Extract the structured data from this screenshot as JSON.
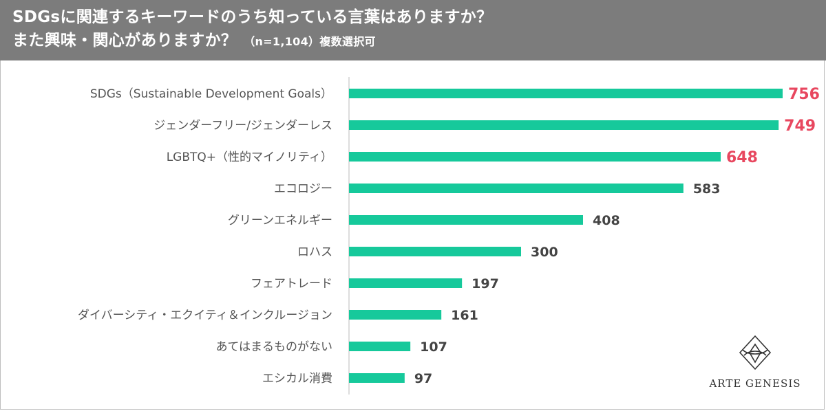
{
  "header": {
    "title_line1": "SDGsに関連するキーワードのうち知っている言葉はありますか？",
    "title_line2": "また興味・関心がありますか？",
    "title_note": "（n=1,104）複数選択可"
  },
  "logo": {
    "text": "ARTE GENESIS",
    "icon": "arte-genesis-emblem-icon"
  },
  "colors": {
    "bar": "#16c99b",
    "highlight": "#e8475f",
    "label": "#555555",
    "value": "#444444",
    "axis": "#bbbbbb"
  },
  "chart_data": {
    "type": "bar",
    "orientation": "horizontal",
    "categories": [
      "SDGs（Sustainable Development Goals）",
      "ジェンダーフリー/ジェンダーレス",
      "LGBTQ+（性的マイノリティ）",
      "エコロジー",
      "グリーンエネルギー",
      "ロハス",
      "フェアトレード",
      "ダイバーシティ・エクイティ＆インクルージョン",
      "あてはまるものがない",
      "エシカル消費"
    ],
    "values": [
      756,
      749,
      648,
      583,
      408,
      300,
      197,
      161,
      107,
      97
    ],
    "highlighted": [
      true,
      true,
      true,
      false,
      false,
      false,
      false,
      false,
      false,
      false
    ],
    "xlim": [
      0,
      756
    ],
    "grid": false
  }
}
